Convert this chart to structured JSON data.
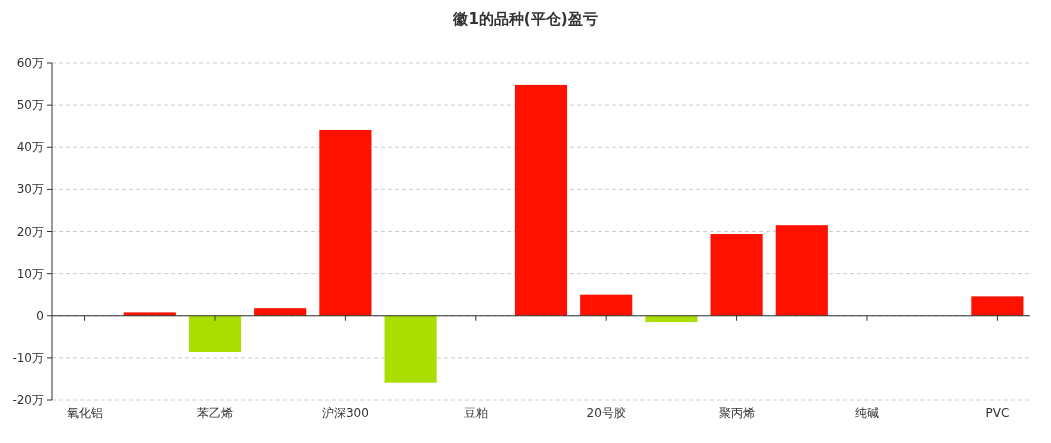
{
  "chart_data": {
    "type": "bar",
    "title": "徽1的品种(平仓)盈亏",
    "categories": [
      "氧化铝",
      null,
      "苯乙烯",
      null,
      "沪深300",
      null,
      "豆粕",
      null,
      "20号胶",
      null,
      "聚丙烯",
      null,
      "纯碱",
      null,
      "PVC"
    ],
    "values": [
      0,
      0.8,
      -8.6,
      1.8,
      44.1,
      -15.9,
      0,
      54.8,
      5.0,
      -1.5,
      19.4,
      21.5,
      null,
      null,
      4.6
    ],
    "colors": [
      "#ff1100",
      "#ff1100",
      "#aadd00",
      "#ff1100",
      "#ff1100",
      "#aadd00",
      "#ff1100",
      "#ff1100",
      "#ff1100",
      "#aadd00",
      "#ff1100",
      "#ff1100",
      null,
      null,
      "#ff1100"
    ],
    "ylim": [
      -20,
      60
    ],
    "yticks": [
      {
        "value": -20,
        "label": "-20万"
      },
      {
        "value": -10,
        "label": "-10万"
      },
      {
        "value": 0,
        "label": "0"
      },
      {
        "value": 10,
        "label": "10万"
      },
      {
        "value": 20,
        "label": "20万"
      },
      {
        "value": 30,
        "label": "30万"
      },
      {
        "value": 40,
        "label": "40万"
      },
      {
        "value": 50,
        "label": "50万"
      },
      {
        "value": 60,
        "label": "60万"
      }
    ],
    "grid": "y"
  }
}
